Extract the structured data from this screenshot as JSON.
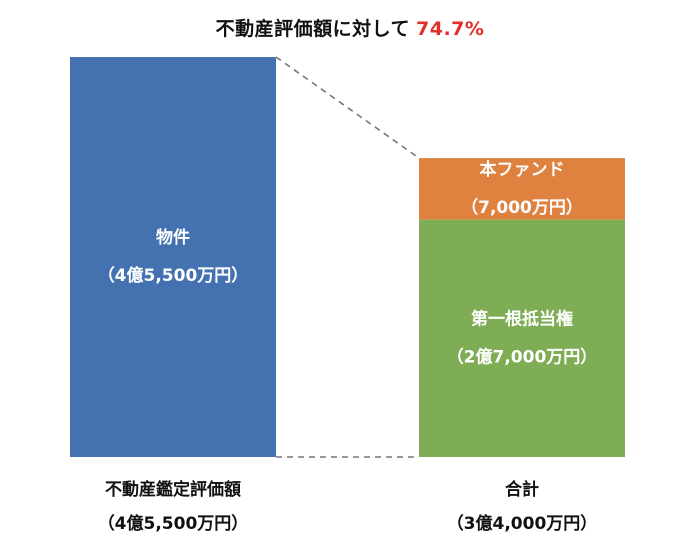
{
  "chart_data": {
    "type": "bar",
    "title": "不動産評価額に対して",
    "title_ratio": "74.7%",
    "ratio_color": "#e0302b",
    "categories": [
      {
        "label": "不動産鑑定評価額",
        "amount_label": "（4億5,500万円）",
        "total": 45500
      },
      {
        "label": "合計",
        "amount_label": "（3億4,000万円）",
        "total": 34000
      }
    ],
    "segments": [
      {
        "category_index": 0,
        "name": "物件",
        "amount_label": "（4億5,500万円）",
        "value": 45500,
        "color": "#4472b0"
      },
      {
        "category_index": 1,
        "name": "第一根抵当権",
        "amount_label": "（2億7,000万円）",
        "value": 27000,
        "color": "#7fad55"
      },
      {
        "category_index": 1,
        "name": "本ファンド",
        "amount_label": "（7,000万円）",
        "value": 7000,
        "color": "#df8240"
      }
    ],
    "unit": "万円",
    "ylim": [
      0,
      45500
    ],
    "grid": false,
    "legend": "none",
    "connector": "dashed"
  }
}
